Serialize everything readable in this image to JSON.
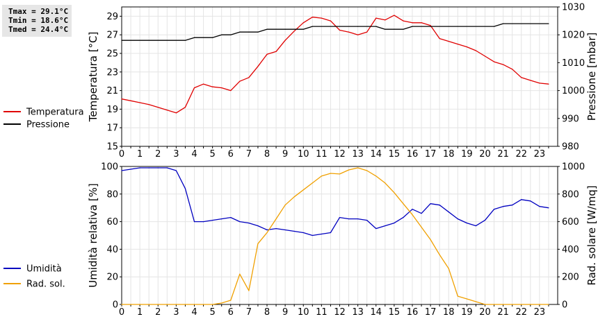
{
  "stats": {
    "tmax": "Tmax = 29.1°C",
    "tmin": "Tmin = 18.6°C",
    "tmed": "Tmed = 24.4°C"
  },
  "chart_data": [
    {
      "type": "line",
      "xlim": [
        0,
        24
      ],
      "xticks": [
        "0",
        "1",
        "2",
        "3",
        "4",
        "5",
        "6",
        "7",
        "8",
        "9",
        "10",
        "11",
        "12",
        "13",
        "14",
        "15",
        "16",
        "17",
        "18",
        "19",
        "20",
        "21",
        "22",
        "23"
      ],
      "ylabel_left": "Temperatura [°C]",
      "ylabel_right": "Pressione [mbar]",
      "ylim_left": [
        15,
        30
      ],
      "yticks_left": [
        "15",
        "17",
        "19",
        "21",
        "23",
        "25",
        "27",
        "29"
      ],
      "ylim_right": [
        980,
        1030
      ],
      "yticks_right": [
        "980",
        "990",
        "1000",
        "1010",
        "1020",
        "1030"
      ],
      "grid": true,
      "legend": "left",
      "series": [
        {
          "name": "Temperatura",
          "axis": "left",
          "color": "#e00000",
          "x": [
            0,
            0.5,
            1,
            1.5,
            2,
            2.5,
            3,
            3.5,
            4,
            4.5,
            5,
            5.5,
            6,
            6.5,
            7,
            7.5,
            8,
            8.5,
            9,
            9.5,
            10,
            10.5,
            11,
            11.5,
            12,
            12.5,
            13,
            13.5,
            14,
            14.5,
            15,
            15.5,
            16,
            16.5,
            17,
            17.5,
            18,
            18.5,
            19,
            19.5,
            20,
            20.5,
            21,
            21.5,
            22,
            22.5,
            23,
            23.5
          ],
          "y": [
            20.1,
            19.9,
            19.7,
            19.5,
            19.2,
            18.9,
            18.6,
            19.2,
            21.3,
            21.7,
            21.4,
            21.3,
            21.0,
            22.0,
            22.4,
            23.6,
            24.9,
            25.2,
            26.4,
            27.4,
            28.3,
            28.9,
            28.8,
            28.5,
            27.5,
            27.3,
            27.0,
            27.3,
            28.8,
            28.6,
            29.1,
            28.5,
            28.3,
            28.3,
            28.0,
            26.6,
            26.3,
            26.0,
            25.7,
            25.3,
            24.7,
            24.1,
            23.8,
            23.3,
            22.4,
            22.1,
            21.8,
            21.7
          ]
        },
        {
          "name": "Pressione",
          "axis": "right",
          "color": "#000000",
          "x": [
            0,
            3.5,
            4,
            5,
            5.5,
            6,
            6.5,
            7,
            7.5,
            8,
            9,
            10,
            10.5,
            13,
            14,
            14.5,
            15,
            15.5,
            16,
            17,
            20.5,
            21,
            23.5
          ],
          "y": [
            1018,
            1018,
            1019,
            1019,
            1020,
            1020,
            1021,
            1021,
            1021,
            1022,
            1022,
            1022,
            1023,
            1023,
            1023,
            1022,
            1022,
            1022,
            1023,
            1023,
            1023,
            1024,
            1024
          ]
        }
      ]
    },
    {
      "type": "line",
      "xlim": [
        0,
        24
      ],
      "xticks": [
        "0",
        "1",
        "2",
        "3",
        "4",
        "5",
        "6",
        "7",
        "8",
        "9",
        "10",
        "11",
        "12",
        "13",
        "14",
        "15",
        "16",
        "17",
        "18",
        "19",
        "20",
        "21",
        "22",
        "23"
      ],
      "ylabel_left": "Umidità relativa [%]",
      "ylabel_right": "Rad. solare [W/mq]",
      "ylim_left": [
        0,
        100
      ],
      "yticks_left": [
        "0",
        "20",
        "40",
        "60",
        "80",
        "100"
      ],
      "ylim_right": [
        0,
        1000
      ],
      "yticks_right": [
        "0",
        "200",
        "400",
        "600",
        "800",
        "1000"
      ],
      "grid": true,
      "legend": "left",
      "series": [
        {
          "name": "Umidità",
          "axis": "left",
          "color": "#0000c0",
          "x": [
            0,
            0.5,
            1,
            1.5,
            2,
            2.5,
            3,
            3.5,
            4,
            4.5,
            5,
            5.5,
            6,
            6.5,
            7,
            7.5,
            8,
            8.5,
            9,
            9.5,
            10,
            10.5,
            11,
            11.5,
            12,
            12.5,
            13,
            13.5,
            14,
            14.5,
            15,
            15.5,
            16,
            16.5,
            17,
            17.5,
            18,
            18.5,
            19,
            19.5,
            20,
            20.5,
            21,
            21.5,
            22,
            22.5,
            23,
            23.5
          ],
          "y": [
            97,
            98,
            99,
            99,
            99,
            99,
            97,
            84,
            60,
            60,
            61,
            62,
            63,
            60,
            59,
            57,
            54,
            55,
            54,
            53,
            52,
            50,
            51,
            52,
            63,
            62,
            62,
            61,
            55,
            57,
            59,
            63,
            69,
            66,
            73,
            72,
            67,
            62,
            59,
            57,
            61,
            69,
            71,
            72,
            76,
            75,
            71,
            70
          ]
        },
        {
          "name": "Rad. sol.",
          "axis": "right",
          "color": "#f0a000",
          "x": [
            0,
            0.5,
            1,
            1.5,
            2,
            2.5,
            3,
            3.5,
            4,
            4.5,
            5,
            5.5,
            6,
            6.5,
            7,
            7.5,
            8,
            8.5,
            9,
            9.5,
            10,
            10.5,
            11,
            11.5,
            12,
            12.5,
            13,
            13.5,
            14,
            14.5,
            15,
            15.5,
            16,
            16.5,
            17,
            17.5,
            18,
            18.5,
            19,
            19.5,
            20,
            20.5,
            21,
            21.5,
            22,
            22.5,
            23,
            23.5
          ],
          "y": [
            0,
            0,
            0,
            0,
            0,
            0,
            0,
            0,
            0,
            0,
            0,
            10,
            30,
            220,
            100,
            440,
            520,
            620,
            720,
            780,
            830,
            880,
            930,
            950,
            945,
            975,
            990,
            970,
            930,
            880,
            810,
            730,
            650,
            560,
            470,
            360,
            260,
            60,
            40,
            20,
            0,
            0,
            0,
            0,
            0,
            0,
            0,
            0
          ]
        }
      ]
    }
  ]
}
